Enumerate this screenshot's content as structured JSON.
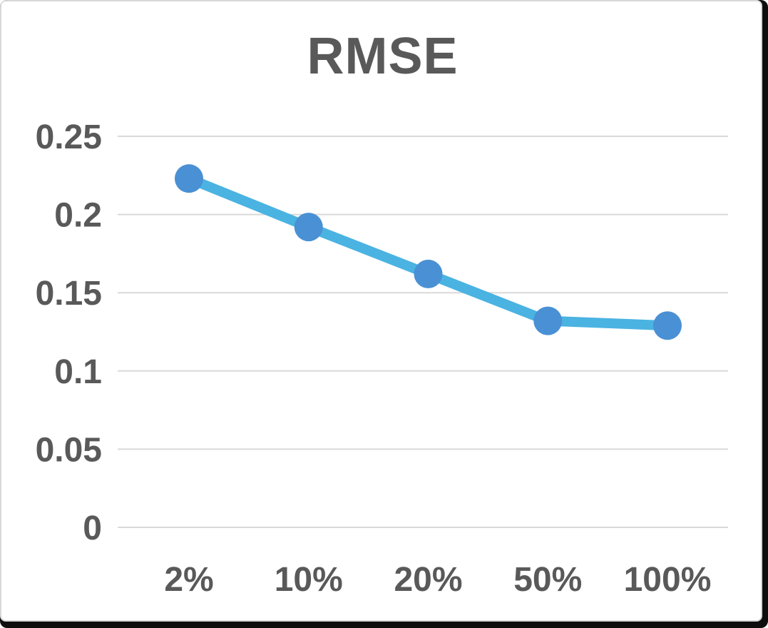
{
  "chart_data": {
    "type": "line",
    "title": "RMSE",
    "categories": [
      "2%",
      "10%",
      "20%",
      "50%",
      "100%"
    ],
    "series": [
      {
        "name": "RMSE",
        "values": [
          0.223,
          0.192,
          0.162,
          0.132,
          0.129
        ]
      }
    ],
    "xlabel": "",
    "ylabel": "",
    "ylim": [
      0,
      0.25
    ],
    "yticks": [
      0,
      0.05,
      0.1,
      0.15,
      0.2,
      0.25
    ],
    "ytick_labels": [
      "0",
      "0.05",
      "0.1",
      "0.15",
      "0.2",
      "0.25"
    ],
    "grid": true,
    "legend": false,
    "colors": {
      "line": "#4AB3E2",
      "marker": "#4A90D4",
      "gridline": "#D9D9D9",
      "text": "#595959",
      "background": "#FFFFFF",
      "frame_shadow": "#0D0D0D",
      "frame_border": "#D8D8D8"
    }
  }
}
